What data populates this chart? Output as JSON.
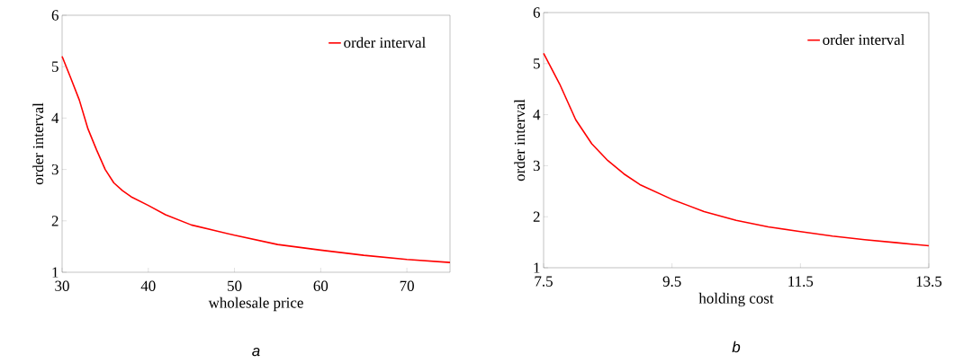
{
  "chart_data": [
    {
      "type": "line",
      "xlabel": "wholesale price",
      "ylabel": "order interval",
      "annotations": [
        "a"
      ],
      "legend": "top right",
      "xlim": [
        30,
        75
      ],
      "ylim": [
        1,
        6
      ],
      "xticks": [
        30,
        40,
        50,
        60,
        70
      ],
      "yticks": [
        1,
        2,
        3,
        4,
        5,
        6
      ],
      "x": [
        30,
        31,
        32,
        33,
        34,
        35,
        36,
        37,
        38,
        40,
        42,
        45,
        50,
        55,
        60,
        65,
        70,
        75
      ],
      "series": [
        {
          "name": "order interval",
          "color": "#ff0000",
          "values": [
            5.2,
            4.78,
            4.35,
            3.79,
            3.38,
            3.0,
            2.74,
            2.59,
            2.47,
            2.3,
            2.12,
            1.92,
            1.72,
            1.54,
            1.43,
            1.33,
            1.25,
            1.19
          ]
        }
      ]
    },
    {
      "type": "line",
      "xlabel": "holding cost",
      "ylabel": "order interval",
      "annotations": [
        "b"
      ],
      "legend": "top right",
      "xlim": [
        7.5,
        13.5
      ],
      "ylim": [
        1,
        6
      ],
      "xticks": [
        7.5,
        9.5,
        11.5,
        13.5
      ],
      "yticks": [
        1,
        2,
        3,
        4,
        5,
        6
      ],
      "x": [
        7.5,
        7.75,
        8.0,
        8.25,
        8.5,
        8.75,
        9.0,
        9.5,
        10.0,
        10.5,
        11.0,
        11.5,
        12.0,
        12.5,
        13.0,
        13.5
      ],
      "series": [
        {
          "name": "order interval",
          "color": "#ff0000",
          "values": [
            5.2,
            4.6,
            3.9,
            3.43,
            3.1,
            2.84,
            2.63,
            2.34,
            2.1,
            1.93,
            1.8,
            1.71,
            1.62,
            1.55,
            1.49,
            1.43
          ]
        }
      ]
    }
  ]
}
